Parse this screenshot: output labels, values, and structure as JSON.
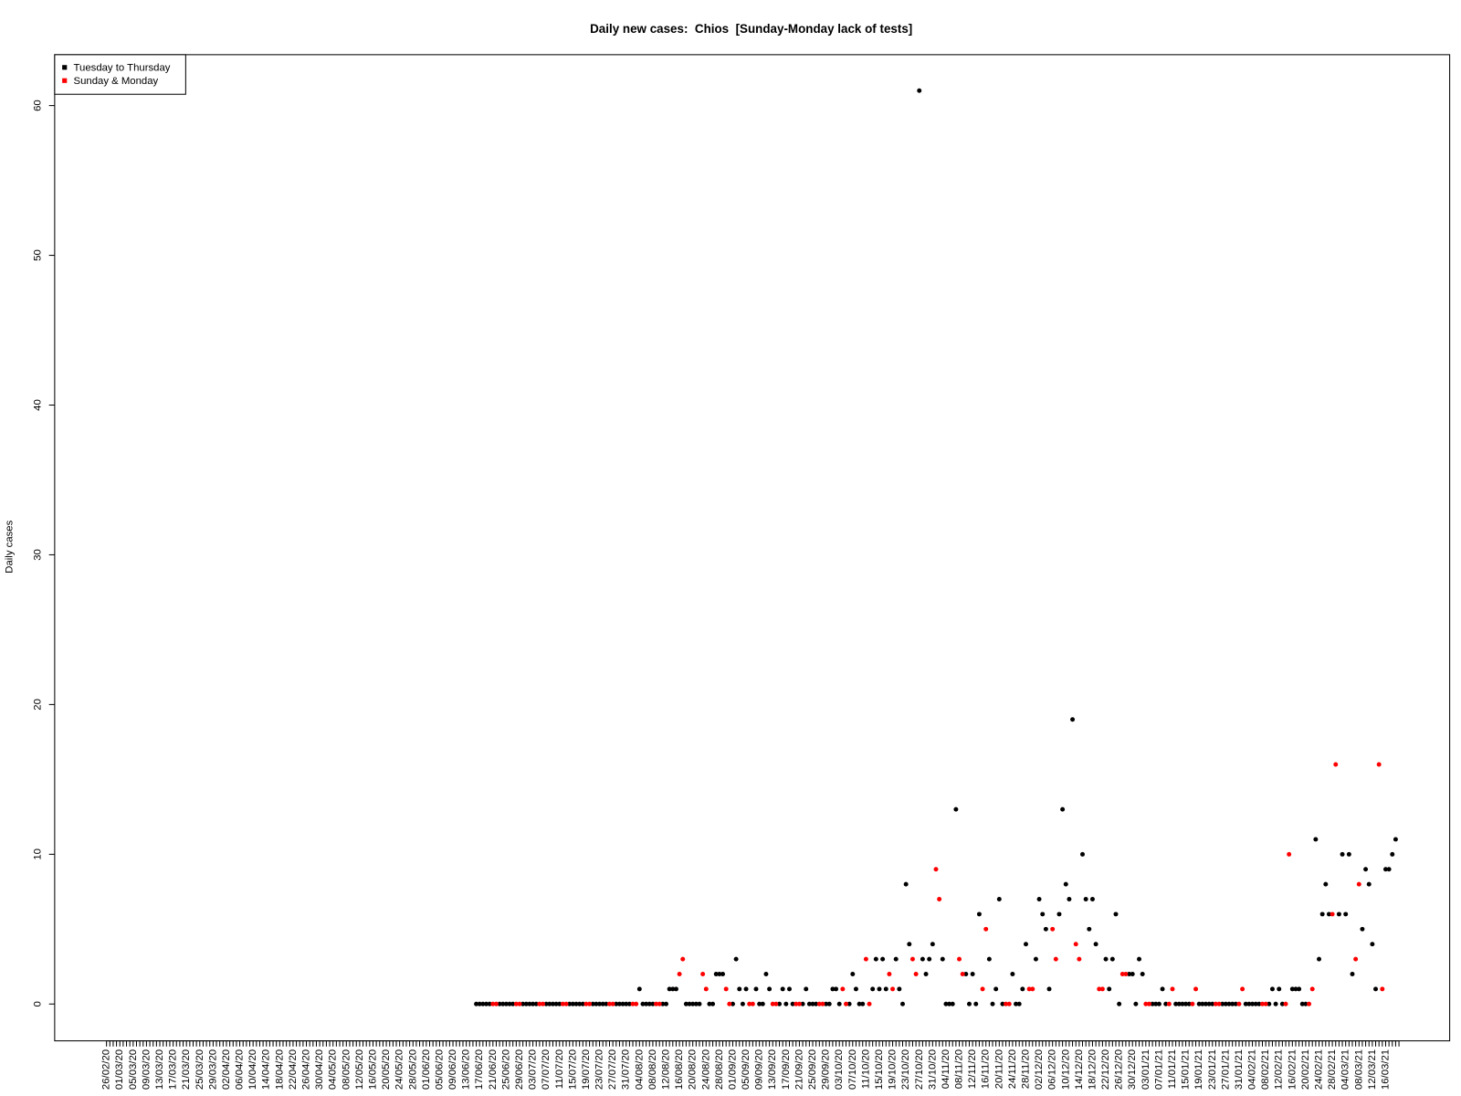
{
  "chart_data": {
    "type": "scatter",
    "title": "Daily new cases:  Chios  [Sunday-Monday lack of tests]",
    "y_label": "Daily cases",
    "legend": "topleft",
    "ylim": [
      -2.46,
      63.4
    ],
    "yticks": [
      0,
      10,
      20,
      30,
      40,
      50,
      60
    ],
    "categories": [
      "26/02/20",
      null,
      null,
      null,
      "01/03/20",
      null,
      null,
      null,
      "05/03/20",
      null,
      null,
      null,
      "09/03/20",
      null,
      null,
      null,
      "13/03/20",
      null,
      null,
      null,
      "17/03/20",
      null,
      null,
      null,
      "21/03/20",
      null,
      null,
      null,
      "25/03/20",
      null,
      null,
      null,
      "29/03/20",
      null,
      null,
      null,
      "02/04/20",
      null,
      null,
      null,
      "06/04/20",
      null,
      null,
      null,
      "10/04/20",
      null,
      null,
      null,
      "14/04/20",
      null,
      null,
      null,
      "18/04/20",
      null,
      null,
      null,
      "22/04/20",
      null,
      null,
      null,
      "26/04/20",
      null,
      null,
      null,
      "30/04/20",
      null,
      null,
      null,
      "04/05/20",
      null,
      null,
      null,
      "08/05/20",
      null,
      null,
      null,
      "12/05/20",
      null,
      null,
      null,
      "16/05/20",
      null,
      null,
      null,
      "20/05/20",
      null,
      null,
      null,
      "24/05/20",
      null,
      null,
      null,
      "28/05/20",
      null,
      null,
      null,
      "01/06/20",
      null,
      null,
      null,
      "05/06/20",
      null,
      null,
      null,
      "09/06/20",
      null,
      null,
      null,
      "13/06/20",
      null,
      null,
      null,
      "17/06/20",
      null,
      null,
      null,
      "21/06/20",
      null,
      null,
      null,
      "25/06/20",
      null,
      null,
      null,
      "29/06/20",
      null,
      null,
      null,
      "03/07/20",
      null,
      null,
      null,
      "07/07/20",
      null,
      null,
      null,
      "11/07/20",
      null,
      null,
      null,
      "15/07/20",
      null,
      null,
      null,
      "19/07/20",
      null,
      null,
      null,
      "23/07/20",
      null,
      null,
      null,
      "27/07/20",
      null,
      null,
      null,
      "31/07/20",
      null,
      null,
      null,
      "04/08/20",
      null,
      null,
      null,
      "08/08/20",
      null,
      null,
      null,
      "12/08/20",
      null,
      null,
      null,
      "16/08/20",
      null,
      null,
      null,
      "20/08/20",
      null,
      null,
      null,
      "24/08/20",
      null,
      null,
      null,
      "28/08/20",
      null,
      null,
      null,
      "01/09/20",
      null,
      null,
      null,
      "05/09/20",
      null,
      null,
      null,
      "09/09/20",
      null,
      null,
      null,
      "13/09/20",
      null,
      null,
      null,
      "17/09/20",
      null,
      null,
      null,
      "21/09/20",
      null,
      null,
      null,
      "25/09/20",
      null,
      null,
      null,
      "29/09/20",
      null,
      null,
      null,
      "03/10/20",
      null,
      null,
      null,
      "07/10/20",
      null,
      null,
      null,
      "11/10/20",
      null,
      null,
      null,
      "15/10/20",
      null,
      null,
      null,
      "19/10/20",
      null,
      null,
      null,
      "23/10/20",
      null,
      null,
      null,
      "27/10/20",
      null,
      null,
      null,
      "31/10/20",
      null,
      null,
      null,
      "04/11/20",
      null,
      null,
      null,
      "08/11/20",
      null,
      null,
      null,
      "12/11/20",
      null,
      null,
      null,
      "16/11/20",
      null,
      null,
      null,
      "20/11/20",
      null,
      null,
      null,
      "24/11/20",
      null,
      null,
      null,
      "28/11/20",
      null,
      null,
      null,
      "02/12/20",
      null,
      null,
      null,
      "06/12/20",
      null,
      null,
      null,
      "10/12/20",
      null,
      null,
      null,
      "14/12/20",
      null,
      null,
      null,
      "18/12/20",
      null,
      null,
      null,
      "22/12/20",
      null,
      null,
      null,
      "26/12/20",
      null,
      null,
      null,
      "30/12/20",
      null,
      null,
      null,
      "03/01/21",
      null,
      null,
      null,
      "07/01/21",
      null,
      null,
      null,
      "11/01/21",
      null,
      null,
      null,
      "15/01/21",
      null,
      null,
      null,
      "19/01/21",
      null,
      null,
      null,
      "23/01/21",
      null,
      null,
      null,
      "27/01/21",
      null,
      null,
      null,
      "31/01/21",
      null,
      null,
      null,
      "04/02/21",
      null,
      null,
      null,
      "08/02/21",
      null,
      null,
      null,
      "12/02/21",
      null,
      null,
      null,
      "16/02/21",
      null,
      null,
      null,
      "20/02/21",
      null,
      null,
      null,
      "24/02/21",
      null,
      null,
      null,
      "28/02/21",
      null,
      null,
      null,
      "04/03/21",
      null,
      null,
      null,
      "08/03/21",
      null,
      null,
      null,
      "12/03/21",
      null,
      null,
      null,
      "16/03/21",
      null,
      null,
      null,
      null
    ],
    "series": [
      {
        "name": "Tuesday to Thursday",
        "color": "#000000",
        "values": [
          null,
          null,
          null,
          null,
          null,
          null,
          null,
          null,
          null,
          null,
          null,
          null,
          null,
          null,
          null,
          null,
          null,
          null,
          null,
          null,
          null,
          null,
          null,
          null,
          null,
          null,
          null,
          null,
          null,
          null,
          null,
          null,
          null,
          null,
          null,
          null,
          null,
          null,
          null,
          null,
          null,
          null,
          null,
          null,
          null,
          null,
          null,
          null,
          null,
          null,
          null,
          null,
          null,
          null,
          null,
          null,
          null,
          null,
          null,
          null,
          null,
          null,
          null,
          null,
          null,
          null,
          null,
          null,
          null,
          null,
          null,
          null,
          null,
          null,
          null,
          null,
          null,
          null,
          null,
          null,
          null,
          null,
          null,
          null,
          null,
          null,
          null,
          null,
          null,
          null,
          null,
          null,
          null,
          null,
          null,
          null,
          null,
          null,
          null,
          null,
          null,
          null,
          null,
          null,
          null,
          null,
          null,
          null,
          null,
          null,
          null,
          0,
          0,
          0,
          0,
          0,
          null,
          null,
          0,
          0,
          0,
          0,
          0,
          null,
          null,
          0,
          0,
          0,
          0,
          0,
          null,
          null,
          0,
          0,
          0,
          0,
          0,
          null,
          null,
          0,
          0,
          0,
          0,
          0,
          null,
          null,
          0,
          0,
          0,
          0,
          0,
          null,
          null,
          0,
          0,
          0,
          0,
          0,
          null,
          null,
          1,
          0,
          0,
          0,
          0,
          null,
          null,
          0,
          0,
          1,
          1,
          1,
          null,
          null,
          0,
          0,
          0,
          0,
          0,
          null,
          null,
          0,
          0,
          2,
          2,
          2,
          null,
          null,
          0,
          3,
          1,
          0,
          1,
          null,
          null,
          1,
          0,
          0,
          2,
          1,
          null,
          null,
          0,
          1,
          0,
          1,
          0,
          null,
          null,
          0,
          1,
          0,
          0,
          0,
          null,
          null,
          0,
          0,
          1,
          1,
          0,
          null,
          null,
          0,
          2,
          1,
          0,
          0,
          null,
          null,
          1,
          3,
          1,
          3,
          1,
          null,
          null,
          3,
          1,
          0,
          8,
          4,
          null,
          null,
          61,
          3,
          2,
          3,
          4,
          null,
          null,
          3,
          0,
          0,
          0,
          13,
          null,
          null,
          2,
          0,
          2,
          0,
          6,
          null,
          null,
          3,
          0,
          1,
          7,
          0,
          null,
          null,
          2,
          0,
          0,
          1,
          4,
          null,
          null,
          3,
          7,
          6,
          5,
          1,
          null,
          null,
          6,
          13,
          8,
          7,
          19,
          null,
          null,
          10,
          7,
          5,
          7,
          4,
          null,
          null,
          3,
          1,
          3,
          6,
          0,
          null,
          null,
          2,
          2,
          0,
          3,
          2,
          null,
          null,
          0,
          0,
          0,
          1,
          0,
          null,
          null,
          0,
          0,
          0,
          0,
          0,
          null,
          null,
          0,
          0,
          0,
          0,
          0,
          null,
          null,
          0,
          0,
          0,
          0,
          0,
          null,
          null,
          0,
          0,
          0,
          0,
          0,
          null,
          null,
          0,
          1,
          0,
          1,
          0,
          null,
          null,
          1,
          1,
          1,
          0,
          0,
          null,
          null,
          11,
          3,
          6,
          8,
          6,
          null,
          null,
          6,
          10,
          6,
          10,
          2,
          null,
          null,
          5,
          9,
          8,
          4,
          1,
          null,
          null,
          9,
          9,
          10,
          11,
          null
        ]
      },
      {
        "name": "Sunday & Monday",
        "color": "#ff0000",
        "values": [
          null,
          null,
          null,
          null,
          null,
          null,
          null,
          null,
          null,
          null,
          null,
          null,
          null,
          null,
          null,
          null,
          null,
          null,
          null,
          null,
          null,
          null,
          null,
          null,
          null,
          null,
          null,
          null,
          null,
          null,
          null,
          null,
          null,
          null,
          null,
          null,
          null,
          null,
          null,
          null,
          null,
          null,
          null,
          null,
          null,
          null,
          null,
          null,
          null,
          null,
          null,
          null,
          null,
          null,
          null,
          null,
          null,
          null,
          null,
          null,
          null,
          null,
          null,
          null,
          null,
          null,
          null,
          null,
          null,
          null,
          null,
          null,
          null,
          null,
          null,
          null,
          null,
          null,
          null,
          null,
          null,
          null,
          null,
          null,
          null,
          null,
          null,
          null,
          null,
          null,
          null,
          null,
          null,
          null,
          null,
          null,
          null,
          null,
          null,
          null,
          null,
          null,
          null,
          null,
          null,
          null,
          null,
          null,
          null,
          null,
          null,
          null,
          null,
          null,
          null,
          null,
          0,
          0,
          null,
          null,
          null,
          null,
          null,
          0,
          0,
          null,
          null,
          null,
          null,
          null,
          0,
          0,
          null,
          null,
          null,
          null,
          null,
          0,
          0,
          null,
          null,
          null,
          null,
          null,
          0,
          0,
          null,
          null,
          null,
          null,
          null,
          0,
          0,
          null,
          null,
          null,
          null,
          null,
          0,
          0,
          null,
          null,
          null,
          null,
          null,
          0,
          0,
          null,
          null,
          null,
          null,
          null,
          2,
          3,
          null,
          null,
          null,
          null,
          null,
          2,
          1,
          null,
          null,
          null,
          null,
          null,
          1,
          0,
          null,
          null,
          null,
          null,
          null,
          0,
          0,
          null,
          null,
          null,
          null,
          null,
          0,
          0,
          null,
          null,
          null,
          null,
          null,
          0,
          0,
          null,
          null,
          null,
          null,
          null,
          0,
          0,
          null,
          null,
          null,
          null,
          null,
          1,
          0,
          null,
          null,
          null,
          null,
          null,
          3,
          0,
          null,
          null,
          null,
          null,
          null,
          2,
          1,
          null,
          null,
          null,
          null,
          null,
          3,
          2,
          null,
          null,
          null,
          null,
          null,
          9,
          7,
          null,
          null,
          null,
          null,
          null,
          3,
          2,
          null,
          null,
          null,
          null,
          null,
          1,
          5,
          null,
          null,
          null,
          null,
          null,
          0,
          0,
          null,
          null,
          null,
          null,
          null,
          1,
          1,
          null,
          null,
          null,
          null,
          null,
          5,
          3,
          null,
          null,
          null,
          null,
          null,
          4,
          3,
          null,
          null,
          null,
          null,
          null,
          1,
          1,
          null,
          null,
          null,
          null,
          null,
          2,
          2,
          null,
          null,
          null,
          null,
          null,
          0,
          0,
          null,
          null,
          null,
          null,
          null,
          0,
          1,
          null,
          null,
          null,
          null,
          null,
          0,
          1,
          null,
          null,
          null,
          null,
          null,
          0,
          0,
          null,
          null,
          null,
          null,
          null,
          0,
          1,
          null,
          null,
          null,
          null,
          null,
          0,
          0,
          null,
          null,
          null,
          null,
          null,
          0,
          10,
          null,
          null,
          null,
          null,
          null,
          0,
          1,
          null,
          null,
          null,
          null,
          null,
          6,
          16,
          null,
          null,
          null,
          null,
          null,
          3,
          8,
          null,
          null,
          null,
          null,
          null,
          16,
          1,
          null,
          null,
          null,
          null,
          null
        ]
      }
    ]
  }
}
